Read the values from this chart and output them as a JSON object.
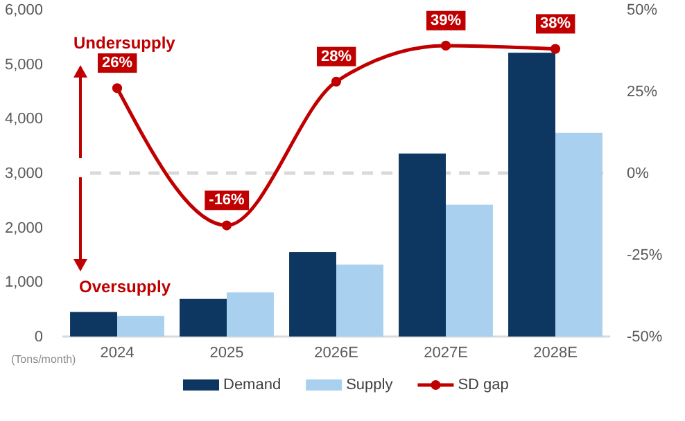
{
  "chart_data": {
    "type": "bar",
    "categories": [
      "2024",
      "2025",
      "2026E",
      "2027E",
      "2028E"
    ],
    "series": [
      {
        "name": "Demand",
        "color": "#0d3660",
        "values": [
          450,
          690,
          1550,
          3360,
          5210
        ]
      },
      {
        "name": "Supply",
        "color": "#a9d1ef",
        "values": [
          380,
          810,
          1320,
          2420,
          3740
        ]
      },
      {
        "name": "SD gap",
        "type": "line",
        "axis": "y2",
        "color": "#c00000",
        "marker": "circle",
        "values": [
          26,
          -16,
          28,
          39,
          38
        ],
        "value_labels": [
          "26%",
          "-16%",
          "28%",
          "39%",
          "38%"
        ]
      }
    ],
    "ylim": [
      0,
      6000
    ],
    "yticks": [
      {
        "value": 0,
        "label": "0"
      },
      {
        "value": 1000,
        "label": "1,000"
      },
      {
        "value": 2000,
        "label": "2,000"
      },
      {
        "value": 3000,
        "label": "3,000"
      },
      {
        "value": 4000,
        "label": "4,000"
      },
      {
        "value": 5000,
        "label": "5,000"
      },
      {
        "value": 6000,
        "label": "6,000"
      }
    ],
    "y2lim": [
      -50,
      50
    ],
    "y2ticks": [
      {
        "value": -50,
        "label": "-50%"
      },
      {
        "value": -25,
        "label": "-25%"
      },
      {
        "value": 0,
        "label": "0%"
      },
      {
        "value": 25,
        "label": "25%"
      },
      {
        "value": 50,
        "label": "50%"
      }
    ],
    "ref_lines": [
      {
        "axis": "y2",
        "value": 0,
        "color": "#d9d9d9",
        "line_style": "dashed"
      }
    ],
    "annotations": [
      "Undersupply",
      "Oversupply",
      "(Tons/month)"
    ],
    "legend": "bottom",
    "grid": false
  }
}
